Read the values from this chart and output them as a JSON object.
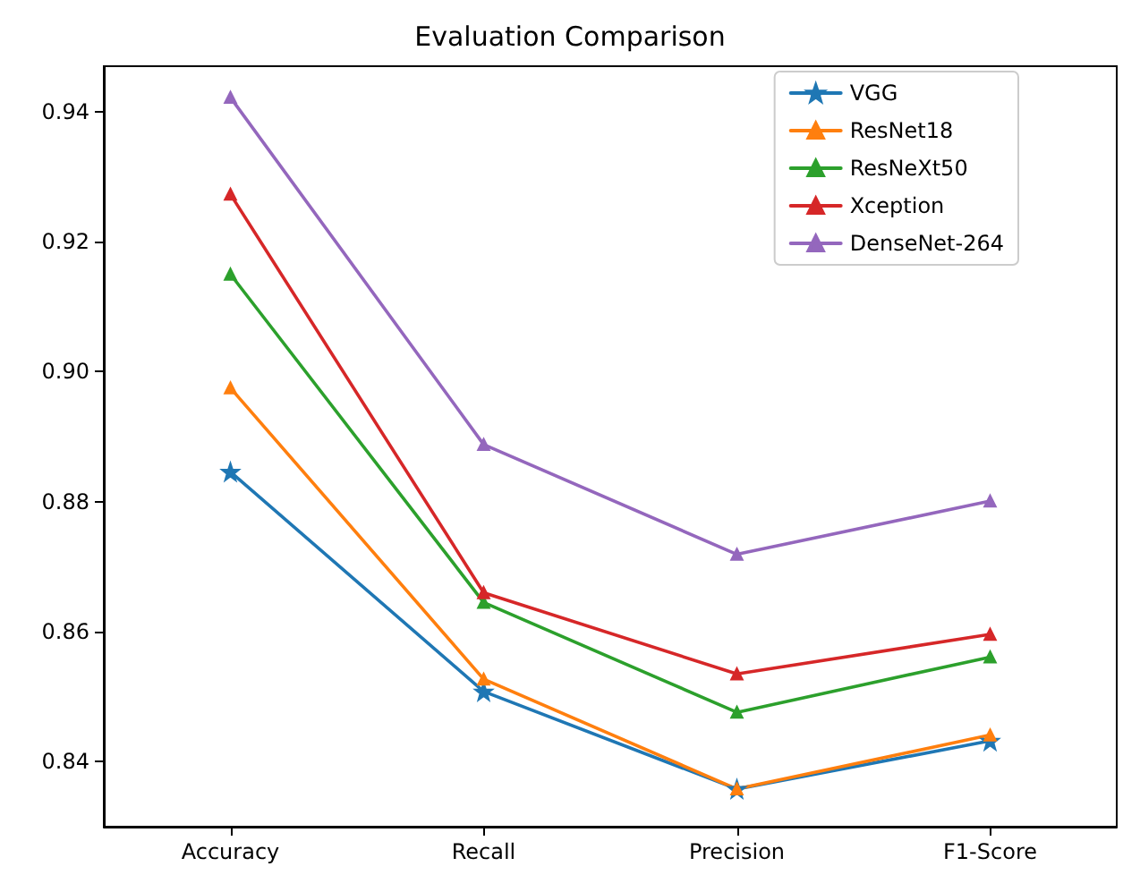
{
  "chart_data": {
    "type": "line",
    "title": "Evaluation Comparison",
    "categories": [
      "Accuracy",
      "Recall",
      "Precision",
      "F1-Score"
    ],
    "series": [
      {
        "name": "VGG",
        "color": "#1f77b4",
        "marker": "star",
        "values": [
          0.8846,
          0.8508,
          0.8358,
          0.8432
        ]
      },
      {
        "name": "ResNet18",
        "color": "#ff7f0e",
        "marker": "triangle",
        "values": [
          0.8975,
          0.8527,
          0.8358,
          0.8441
        ]
      },
      {
        "name": "ResNeXt50",
        "color": "#2ca02c",
        "marker": "triangle",
        "values": [
          0.915,
          0.8645,
          0.8476,
          0.8561
        ]
      },
      {
        "name": "Xception",
        "color": "#d62728",
        "marker": "triangle",
        "values": [
          0.9273,
          0.866,
          0.8535,
          0.8596
        ]
      },
      {
        "name": "DenseNet-264",
        "color": "#9467bd",
        "marker": "triangle",
        "values": [
          0.9422,
          0.8888,
          0.8719,
          0.8801
        ]
      }
    ],
    "ylim": [
      0.83,
      0.947
    ],
    "yticks": [
      0.84,
      0.86,
      0.88,
      {
        "value": 0.9,
        "label": "0.90"
      },
      0.92,
      0.94
    ],
    "legend": "top right",
    "line_style": "solid"
  }
}
